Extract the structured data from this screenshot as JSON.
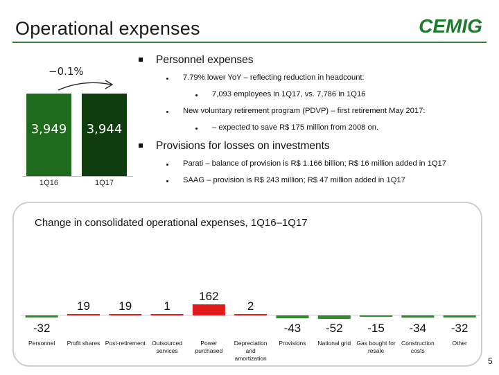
{
  "slide": {
    "title": "Operational expenses",
    "page_number": "5",
    "brand": {
      "logo_text": "CEMIG",
      "accent_color": "#2e7d32",
      "logo_color": "#1b7a2c"
    }
  },
  "headline_chart": {
    "change_label": "−0.1%",
    "bars": [
      {
        "category": "1Q16",
        "value_label": "3,949",
        "color": "#1e6b1e"
      },
      {
        "category": "1Q17",
        "value_label": "3,944",
        "color": "#0f3d0f"
      }
    ]
  },
  "bullets": {
    "personnel": {
      "heading": "Personnel expenses",
      "items": [
        "7.79% lower YoY – reflecting reduction in headcount:",
        "7,093 employees in 1Q17, vs. 7,786 in 1Q16",
        "New voluntary retirement program (PDVP) – first retirement May 2017:",
        "– expected to save R$ 175 million from 2008 on."
      ]
    },
    "provisions": {
      "heading": "Provisions for losses on investments",
      "items": [
        "Parati – balance of provision is R$ 1.166 billion; R$ 16 million added in 1Q17",
        "SAAG – provision is R$ 243 million; R$ 47 million added in 1Q17"
      ]
    }
  },
  "chart_data": [
    {
      "type": "bar",
      "categories": [
        "1Q16",
        "1Q17"
      ],
      "values": [
        3949,
        3944
      ],
      "annotation": "−0.1%"
    },
    {
      "type": "bar",
      "title": "Change in consolidated operational expenses, 1Q16–1Q17",
      "categories": [
        "Personnel",
        "Profit shares",
        "Post-retirement",
        "Outsourced services",
        "Power purchased",
        "Depreciation and amortization",
        "Provisions",
        "National grid",
        "Gas bought for resale",
        "Construction costs",
        "Other"
      ],
      "category_lines": [
        [
          "Personnel"
        ],
        [
          "Profit shares"
        ],
        [
          "Post-retirement"
        ],
        [
          "Outsourced",
          "services"
        ],
        [
          "Power",
          "purchased"
        ],
        [
          "Depreciation",
          "and",
          "amortization"
        ],
        [
          "Provisions"
        ],
        [
          "National grid"
        ],
        [
          "Gas bought for",
          "resale"
        ],
        [
          "Construction",
          "costs"
        ],
        [
          "Other"
        ]
      ],
      "values": [
        -32,
        19,
        19,
        1,
        162,
        2,
        -43,
        -52,
        -15,
        -34,
        -32
      ],
      "colors": {
        "positive": "#e11b1b",
        "negative": "#2e8b2e"
      },
      "grid": false
    }
  ]
}
